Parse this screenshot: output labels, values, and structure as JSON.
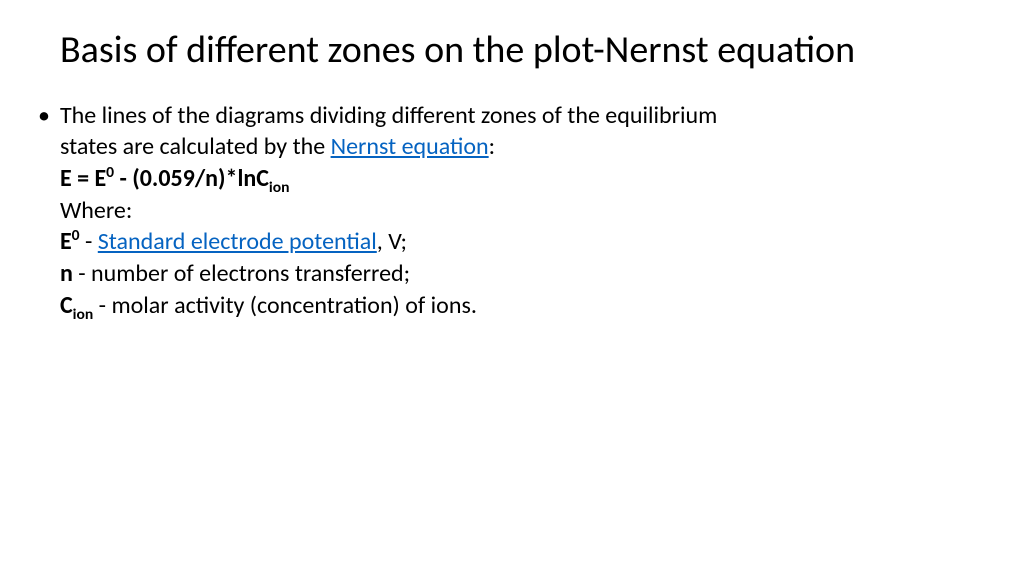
{
  "slide": {
    "title": "Basis of different zones on the plot-Nernst equation",
    "bullet_marker": "•",
    "line1_a": "The lines of the diagrams dividing different zones of the equilibrium",
    "line2_a": "states are calculated by the ",
    "line2_link": "Nernst equation",
    "line2_b": ":",
    "eq_a": "E = E",
    "eq_sup": "0",
    "eq_b": " - (0.059/n)*lnC",
    "eq_sub": "ion",
    "where": "Where:",
    "e0_a": "E",
    "e0_sup": "0",
    "e0_b": " - ",
    "e0_link": "Standard electrode potential",
    "e0_c": ", V;",
    "n_a": "n",
    "n_b": " - number of electrons transferred;",
    "c_a": "C",
    "c_sub": "ion",
    "c_b": " - molar activity (concentration) of ions.",
    "colors": {
      "text": "#000000",
      "link": "#0563c1",
      "background": "#ffffff"
    },
    "typography": {
      "title_fontsize": 38,
      "body_fontsize": 24,
      "font_family": "Calibri"
    }
  }
}
